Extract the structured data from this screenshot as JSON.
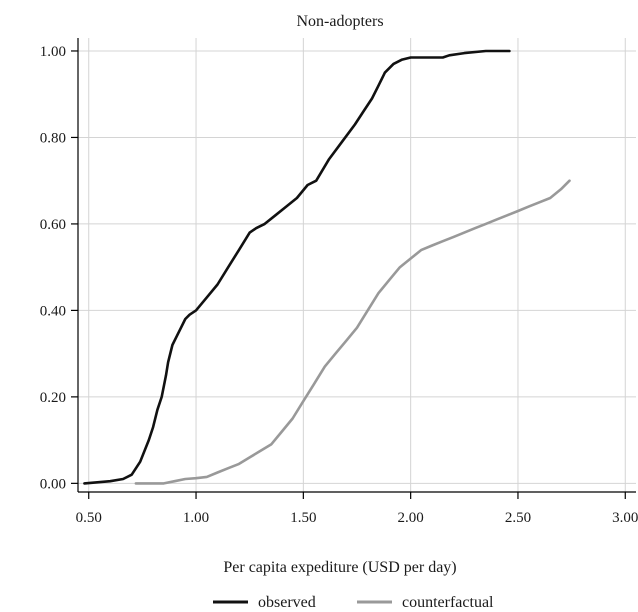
{
  "chart_data": {
    "type": "line",
    "title": "Non-adopters",
    "xlabel": "Per capita expediture (USD per day)",
    "ylabel": "",
    "xlim": [
      0.45,
      3.05
    ],
    "ylim": [
      -0.02,
      1.03
    ],
    "xticks": [
      0.5,
      1.0,
      1.5,
      2.0,
      2.5,
      3.0
    ],
    "xtick_labels": [
      "0.50",
      "1.00",
      "1.50",
      "2.00",
      "2.50",
      "3.00"
    ],
    "yticks": [
      0.0,
      0.2,
      0.4,
      0.6,
      0.8,
      1.0
    ],
    "ytick_labels": [
      "0.00",
      "0.20",
      "0.40",
      "0.60",
      "0.80",
      "1.00"
    ],
    "grid": true,
    "legend": "bottom",
    "series": [
      {
        "name": "observed",
        "color": "#111111",
        "x": [
          0.48,
          0.6,
          0.66,
          0.7,
          0.74,
          0.78,
          0.8,
          0.82,
          0.84,
          0.86,
          0.87,
          0.89,
          0.91,
          0.93,
          0.95,
          0.97,
          1.0,
          1.05,
          1.1,
          1.15,
          1.2,
          1.25,
          1.28,
          1.32,
          1.37,
          1.42,
          1.47,
          1.52,
          1.56,
          1.62,
          1.68,
          1.74,
          1.78,
          1.82,
          1.85,
          1.88,
          1.92,
          1.96,
          2.0,
          2.05,
          2.15,
          2.18,
          2.25,
          2.35,
          2.46
        ],
        "y": [
          0.0,
          0.005,
          0.01,
          0.02,
          0.05,
          0.1,
          0.13,
          0.17,
          0.2,
          0.25,
          0.28,
          0.32,
          0.34,
          0.36,
          0.38,
          0.39,
          0.4,
          0.43,
          0.46,
          0.5,
          0.54,
          0.58,
          0.59,
          0.6,
          0.62,
          0.64,
          0.66,
          0.69,
          0.7,
          0.75,
          0.79,
          0.83,
          0.86,
          0.89,
          0.92,
          0.95,
          0.97,
          0.98,
          0.985,
          0.985,
          0.985,
          0.99,
          0.995,
          1.0,
          1.0
        ],
        "label": "observed"
      },
      {
        "name": "counterfactual",
        "color": "#999999",
        "x": [
          0.72,
          0.85,
          0.9,
          0.95,
          1.0,
          1.05,
          1.1,
          1.15,
          1.2,
          1.25,
          1.3,
          1.35,
          1.4,
          1.45,
          1.5,
          1.55,
          1.6,
          1.65,
          1.7,
          1.75,
          1.8,
          1.85,
          1.9,
          1.95,
          2.0,
          2.05,
          2.1,
          2.15,
          2.2,
          2.25,
          2.3,
          2.35,
          2.4,
          2.45,
          2.5,
          2.55,
          2.6,
          2.65,
          2.7,
          2.74
        ],
        "y": [
          0.0,
          0.0,
          0.005,
          0.01,
          0.012,
          0.015,
          0.025,
          0.035,
          0.045,
          0.06,
          0.075,
          0.09,
          0.12,
          0.15,
          0.19,
          0.23,
          0.27,
          0.3,
          0.33,
          0.36,
          0.4,
          0.44,
          0.47,
          0.5,
          0.52,
          0.54,
          0.55,
          0.56,
          0.57,
          0.58,
          0.59,
          0.6,
          0.61,
          0.62,
          0.63,
          0.64,
          0.65,
          0.66,
          0.68,
          0.7
        ],
        "label": "counterfactual"
      }
    ]
  }
}
